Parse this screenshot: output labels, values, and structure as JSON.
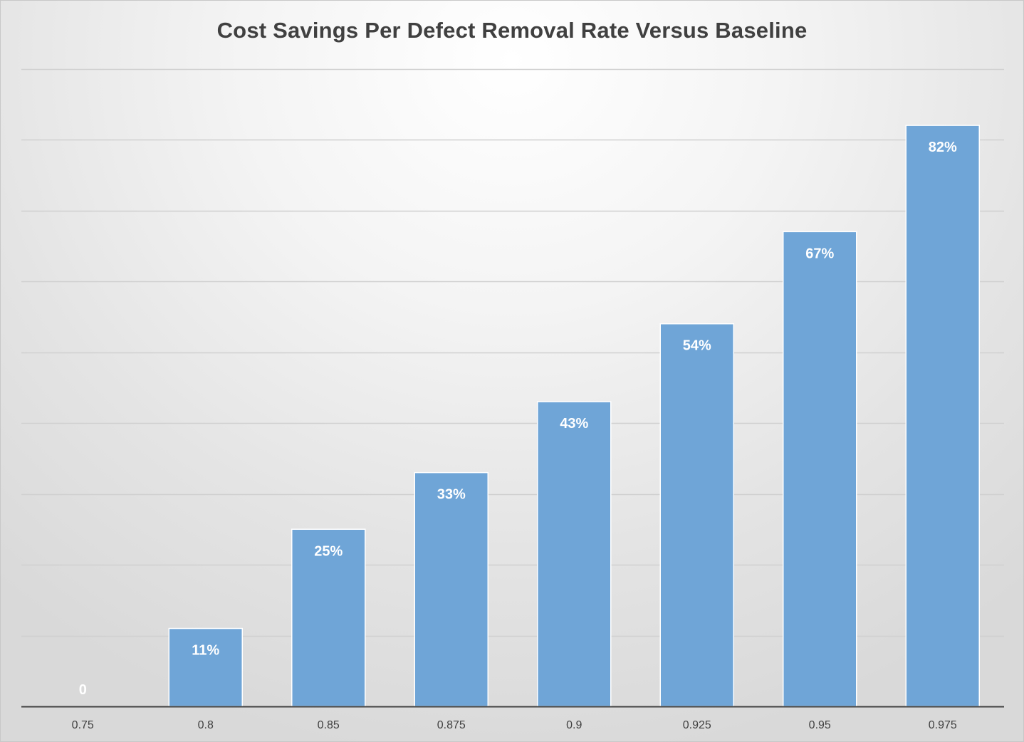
{
  "chart_data": {
    "type": "bar",
    "title": "Cost Savings Per Defect Removal Rate Versus Baseline",
    "xlabel": "",
    "ylabel": "",
    "categories": [
      "0.75",
      "0.8",
      "0.85",
      "0.875",
      "0.9",
      "0.925",
      "0.95",
      "0.975"
    ],
    "values": [
      0,
      0.11,
      0.25,
      0.33,
      0.43,
      0.54,
      0.67,
      0.82
    ],
    "data_labels": [
      "0",
      "11%",
      "25%",
      "33%",
      "43%",
      "54%",
      "67%",
      "82%"
    ],
    "ylim": [
      0,
      0.9
    ],
    "gridline_step": 0.1,
    "y_tick_labels_shown": false,
    "grid": true,
    "legend": "none",
    "colors": {
      "bar": "#6fa5d7",
      "bar_edge": "#ffffff",
      "gridline": "#d0d0d0",
      "axis": "#404040",
      "title": "#404040"
    }
  }
}
